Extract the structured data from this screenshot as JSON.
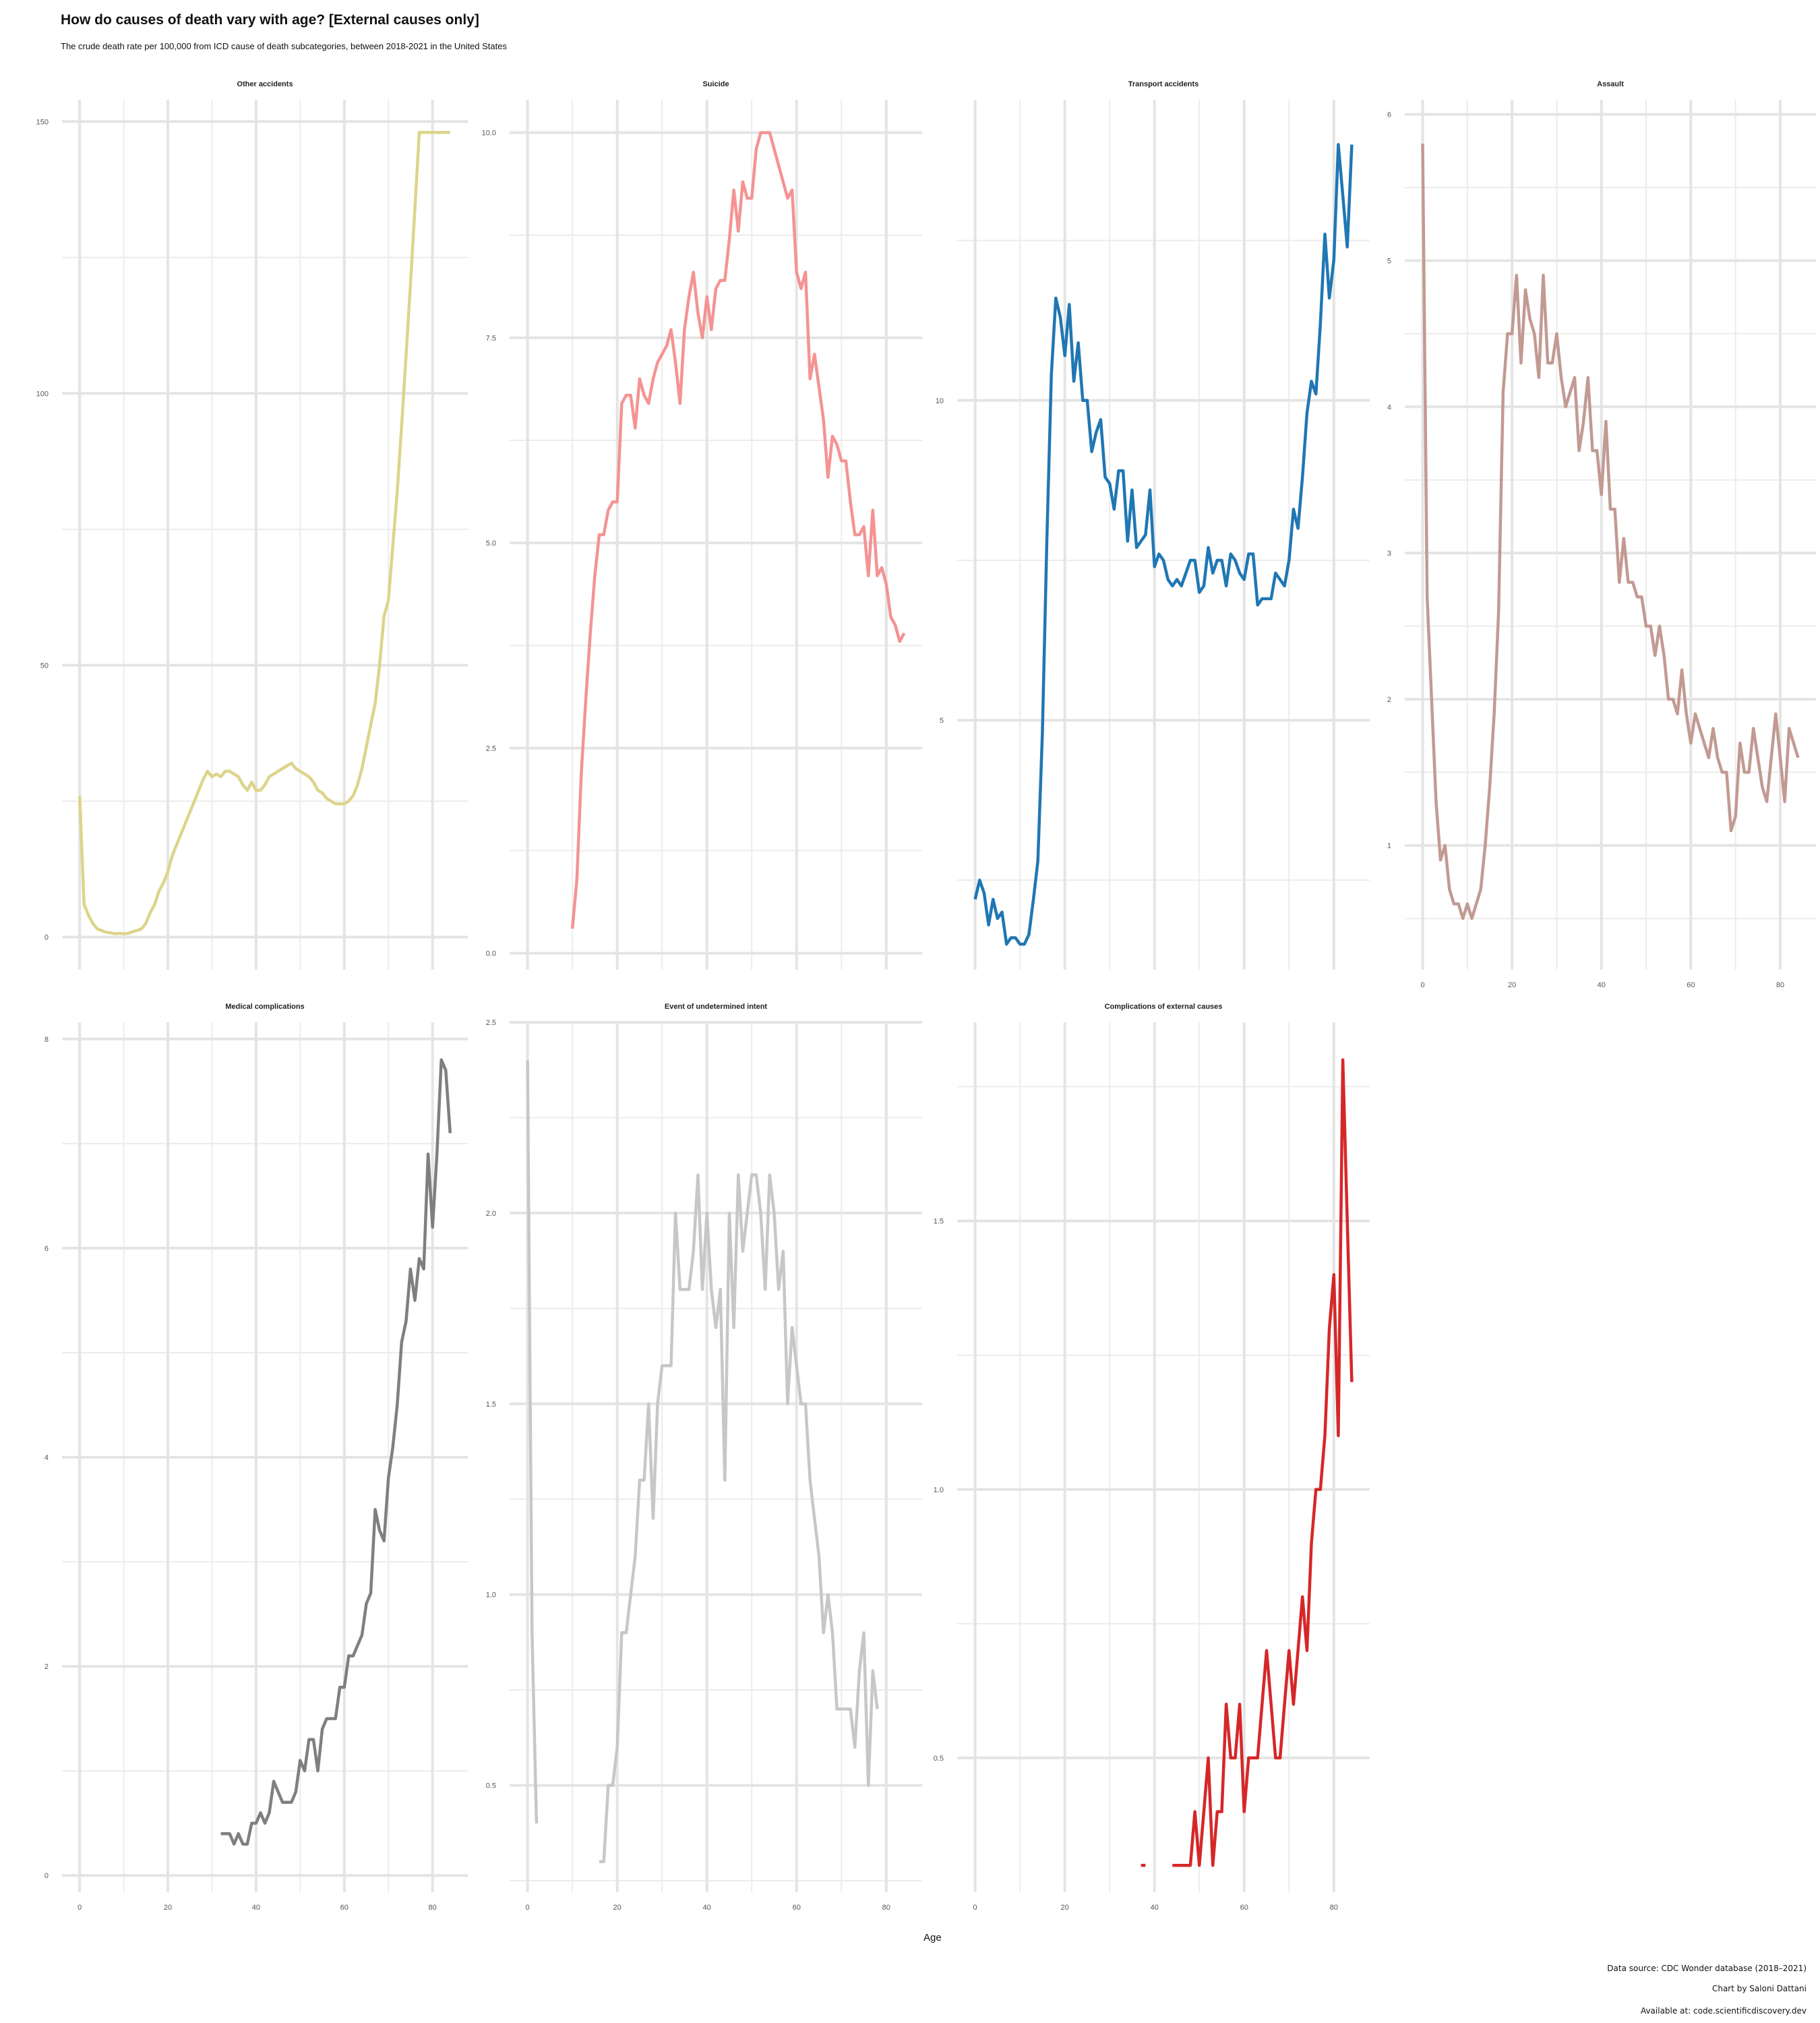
{
  "header": {
    "title": "How do causes of death vary with age? [External causes only]",
    "subtitle": "The crude death rate per 100,000 from ICD cause of death subcategories, between 2018-2021 in the United States"
  },
  "axis": {
    "xlabel": "Age"
  },
  "footer": {
    "source": "Data source: CDC Wonder database (2018–2021)",
    "author": "Chart by Saloni Dattani",
    "available": "Available at: code.scientificdiscovery.dev"
  },
  "chart_data": [
    {
      "type": "line",
      "title": "Other accidents",
      "color": "#ddd48b",
      "xlim": [
        -4,
        88
      ],
      "ylim": [
        -6,
        154
      ],
      "xticks": [],
      "yticks": [
        0,
        50,
        100,
        150
      ],
      "ytick_labels": [
        "0",
        "50",
        "100",
        "150"
      ],
      "x": [
        0,
        1,
        2,
        3,
        4,
        5,
        6,
        7,
        8,
        9,
        10,
        11,
        12,
        13,
        14,
        15,
        16,
        17,
        18,
        19,
        20,
        21,
        22,
        23,
        24,
        25,
        26,
        27,
        28,
        29,
        30,
        31,
        32,
        33,
        34,
        35,
        36,
        37,
        38,
        39,
        40,
        41,
        42,
        43,
        44,
        45,
        46,
        47,
        48,
        49,
        50,
        51,
        52,
        53,
        54,
        55,
        56,
        57,
        58,
        59,
        60,
        61,
        62,
        63,
        64,
        65,
        66,
        67,
        68,
        69,
        70,
        71,
        72,
        73,
        74,
        75,
        76,
        77,
        78,
        79,
        80,
        81,
        82,
        83,
        84
      ],
      "y": [
        26,
        6,
        4,
        2.5,
        1.5,
        1.2,
        0.9,
        0.8,
        0.6,
        0.7,
        0.6,
        0.7,
        1,
        1.2,
        1.5,
        2.5,
        4.5,
        6,
        8.5,
        10,
        12,
        15,
        17,
        19,
        21,
        23,
        25,
        27,
        29,
        30.5,
        29.5,
        30,
        29.5,
        30.5,
        30.5,
        30,
        29.5,
        28,
        27,
        28.5,
        27,
        27,
        28,
        29.5,
        30,
        30.5,
        31,
        31.5,
        32,
        31,
        30.5,
        30,
        29.5,
        28.5,
        27,
        26.5,
        25.5,
        25,
        24.5,
        24.5,
        24.5,
        25,
        26,
        28,
        31,
        35,
        39,
        43,
        50,
        59,
        62,
        72,
        82,
        94,
        107,
        120,
        134,
        148,
        148,
        148,
        148,
        148,
        148,
        148,
        148
      ]
    },
    {
      "type": "line",
      "title": "Suicide",
      "color": "#f59393",
      "xlim": [
        -4,
        88
      ],
      "ylim": [
        -0.2,
        10.4
      ],
      "xticks": [],
      "yticks": [
        0,
        2.5,
        5,
        7.5,
        10
      ],
      "ytick_labels": [
        "0.0",
        "2.5",
        "5.0",
        "7.5",
        "10.0"
      ],
      "x": [
        10,
        11,
        12,
        13,
        14,
        15,
        16,
        17,
        18,
        19,
        20,
        21,
        22,
        23,
        24,
        25,
        26,
        27,
        28,
        29,
        30,
        31,
        32,
        33,
        34,
        35,
        36,
        37,
        38,
        39,
        40,
        41,
        42,
        43,
        44,
        45,
        46,
        47,
        48,
        49,
        50,
        51,
        52,
        53,
        54,
        55,
        56,
        57,
        58,
        59,
        60,
        61,
        62,
        63,
        64,
        65,
        66,
        67,
        68,
        69,
        70,
        71,
        72,
        73,
        74,
        75,
        76,
        77,
        78,
        79,
        80,
        81,
        82,
        83,
        84
      ],
      "y": [
        0.3,
        0.9,
        2.2,
        3.1,
        3.9,
        4.6,
        5.1,
        5.1,
        5.4,
        5.5,
        5.5,
        6.7,
        6.8,
        6.8,
        6.4,
        7,
        6.8,
        6.7,
        7,
        7.2,
        7.3,
        7.4,
        7.6,
        7.2,
        6.7,
        7.6,
        8,
        8.3,
        7.8,
        7.5,
        8,
        7.6,
        8.1,
        8.2,
        8.2,
        8.7,
        9.3,
        8.8,
        9.4,
        9.2,
        9.2,
        9.8,
        10,
        10,
        10,
        9.8,
        9.6,
        9.4,
        9.2,
        9.3,
        8.3,
        8.1,
        8.3,
        7,
        7.3,
        6.9,
        6.5,
        5.8,
        6.3,
        6.2,
        6,
        6,
        5.5,
        5.1,
        5.1,
        5.2,
        4.6,
        5.4,
        4.6,
        4.7,
        4.5,
        4.1,
        4,
        3.8,
        3.9
      ]
    },
    {
      "type": "line",
      "title": "Transport accidents",
      "color": "#1f77b4",
      "xlim": [
        -4,
        88
      ],
      "ylim": [
        1.1,
        14.7
      ],
      "xticks": [],
      "yticks": [
        5,
        10
      ],
      "ytick_labels": [
        "5",
        "10"
      ],
      "x": [
        0,
        1,
        2,
        3,
        4,
        5,
        6,
        7,
        8,
        9,
        10,
        11,
        12,
        13,
        14,
        15,
        16,
        17,
        18,
        19,
        20,
        21,
        22,
        23,
        24,
        25,
        26,
        27,
        28,
        29,
        30,
        31,
        32,
        33,
        34,
        35,
        36,
        37,
        38,
        39,
        40,
        41,
        42,
        43,
        44,
        45,
        46,
        47,
        48,
        49,
        50,
        51,
        52,
        53,
        54,
        55,
        56,
        57,
        58,
        59,
        60,
        61,
        62,
        63,
        64,
        65,
        66,
        67,
        68,
        69,
        70,
        71,
        72,
        73,
        74,
        75,
        76,
        77,
        78,
        79,
        80,
        81,
        82,
        83,
        84
      ],
      "y": [
        2.2,
        2.5,
        2.3,
        1.8,
        2.2,
        1.9,
        2.0,
        1.5,
        1.6,
        1.6,
        1.5,
        1.5,
        1.65,
        2.2,
        2.8,
        4.8,
        7.8,
        10.4,
        11.6,
        11.3,
        10.7,
        11.5,
        10.3,
        10.9,
        10.0,
        10.0,
        9.2,
        9.5,
        9.7,
        8.8,
        8.7,
        8.3,
        8.9,
        8.9,
        7.8,
        8.6,
        7.7,
        7.8,
        7.9,
        8.6,
        7.4,
        7.6,
        7.5,
        7.2,
        7.1,
        7.2,
        7.1,
        7.3,
        7.5,
        7.5,
        7.0,
        7.1,
        7.7,
        7.3,
        7.5,
        7.5,
        7.1,
        7.6,
        7.5,
        7.3,
        7.2,
        7.6,
        7.6,
        6.8,
        6.9,
        6.9,
        6.9,
        7.3,
        7.2,
        7.1,
        7.5,
        8.3,
        8.0,
        8.8,
        9.8,
        10.3,
        10.1,
        11.2,
        12.6,
        11.6,
        12.2,
        14.0,
        13.2,
        12.4,
        14.0
      ]
    },
    {
      "type": "line",
      "title": "Assault",
      "color": "#c29a92",
      "xlim": [
        -4,
        88
      ],
      "ylim": [
        0.15,
        6.1
      ],
      "xticks": [
        0,
        20,
        40,
        60,
        80
      ],
      "yticks": [
        1,
        2,
        3,
        4,
        5,
        6
      ],
      "ytick_labels": [
        "1",
        "2",
        "3",
        "4",
        "5",
        "6"
      ],
      "x": [
        0,
        1,
        2,
        3,
        4,
        5,
        6,
        7,
        8,
        9,
        10,
        11,
        12,
        13,
        14,
        15,
        16,
        17,
        18,
        19,
        20,
        21,
        22,
        23,
        24,
        25,
        26,
        27,
        28,
        29,
        30,
        31,
        32,
        33,
        34,
        35,
        36,
        37,
        38,
        39,
        40,
        41,
        42,
        43,
        44,
        45,
        46,
        47,
        48,
        49,
        50,
        51,
        52,
        53,
        54,
        55,
        56,
        57,
        58,
        59,
        60,
        61,
        62,
        63,
        64,
        65,
        66,
        67,
        68,
        69,
        70,
        71,
        72,
        73,
        74,
        75,
        76,
        77,
        78,
        79,
        80,
        81,
        82,
        83,
        84
      ],
      "y": [
        5.8,
        2.7,
        2,
        1.3,
        0.9,
        1,
        0.7,
        0.6,
        0.6,
        0.5,
        0.6,
        0.5,
        0.6,
        0.7,
        1,
        1.4,
        1.9,
        2.6,
        4.1,
        4.5,
        4.5,
        4.9,
        4.3,
        4.8,
        4.6,
        4.5,
        4.2,
        4.9,
        4.3,
        4.3,
        4.5,
        4.2,
        4,
        4.1,
        4.2,
        3.7,
        3.9,
        4.2,
        3.7,
        3.7,
        3.4,
        3.9,
        3.3,
        3.3,
        2.8,
        3.1,
        2.8,
        2.8,
        2.7,
        2.7,
        2.5,
        2.5,
        2.3,
        2.5,
        2.3,
        2,
        2,
        1.9,
        2.2,
        1.9,
        1.7,
        1.9,
        1.8,
        1.7,
        1.6,
        1.8,
        1.6,
        1.5,
        1.5,
        1.1,
        1.2,
        1.7,
        1.5,
        1.5,
        1.8,
        1.6,
        1.4,
        1.3,
        1.6,
        1.9,
        1.6,
        1.3,
        1.8,
        1.7,
        1.6
      ]
    },
    {
      "type": "line",
      "title": "Medical complications",
      "color": "#7f7f7f",
      "xlim": [
        -4,
        88
      ],
      "ylim": [
        -0.16,
        8.16
      ],
      "xticks": [
        0,
        20,
        40,
        60,
        80
      ],
      "yticks": [
        0,
        2,
        4,
        6,
        8
      ],
      "ytick_labels": [
        "0",
        "2",
        "4",
        "6",
        "8"
      ],
      "x": [
        32,
        33,
        34,
        35,
        36,
        37,
        38,
        39,
        40,
        41,
        42,
        43,
        44,
        45,
        46,
        47,
        48,
        49,
        50,
        51,
        52,
        53,
        54,
        55,
        56,
        57,
        58,
        59,
        60,
        61,
        62,
        63,
        64,
        65,
        66,
        67,
        68,
        69,
        70,
        71,
        72,
        73,
        74,
        75,
        76,
        77,
        78,
        79,
        80,
        81,
        82,
        83,
        84
      ],
      "y": [
        0.4,
        0.4,
        0.4,
        0.3,
        0.4,
        0.3,
        0.3,
        0.5,
        0.5,
        0.6,
        0.5,
        0.6,
        0.9,
        0.8,
        0.7,
        0.7,
        0.7,
        0.8,
        1.1,
        1.0,
        1.3,
        1.3,
        1.0,
        1.4,
        1.5,
        1.5,
        1.5,
        1.8,
        1.8,
        2.1,
        2.1,
        2.2,
        2.3,
        2.6,
        2.7,
        3.5,
        3.3,
        3.2,
        3.8,
        4.1,
        4.5,
        5.1,
        5.3,
        5.8,
        5.5,
        5.9,
        5.8,
        6.9,
        6.2,
        6.9,
        7.8,
        7.7,
        7.1
      ]
    },
    {
      "type": "line",
      "title": "Event of undetermined intent",
      "color": "#c7c7c7",
      "xlim": [
        -4,
        88
      ],
      "ylim": [
        0.22,
        2.5
      ],
      "xticks": [
        0,
        20,
        40,
        60,
        80
      ],
      "yticks": [
        0.5,
        1,
        1.5,
        2,
        2.5
      ],
      "ytick_labels": [
        "0.5",
        "1.0",
        "1.5",
        "2.0",
        "2.5"
      ],
      "segments": [
        {
          "x": [
            0,
            1,
            2
          ],
          "y": [
            2.4,
            0.9,
            0.4
          ]
        },
        {
          "x": [
            16,
            17,
            18,
            19,
            20,
            21,
            22,
            23,
            24,
            25,
            26,
            27,
            28,
            29,
            30,
            31,
            32,
            33,
            34,
            35,
            36,
            37,
            38,
            39,
            40,
            41,
            42,
            43,
            44,
            45,
            46,
            47,
            48,
            49,
            50,
            51,
            52,
            53,
            54,
            55,
            56,
            57,
            58,
            59,
            60,
            61,
            62,
            63,
            64,
            65,
            66,
            67,
            68,
            69,
            70,
            71,
            72,
            73,
            74,
            75,
            76,
            77,
            78
          ],
          "y": [
            0.3,
            0.3,
            0.5,
            0.5,
            0.6,
            0.9,
            0.9,
            1.0,
            1.1,
            1.3,
            1.3,
            1.5,
            1.2,
            1.5,
            1.6,
            1.6,
            1.6,
            2.0,
            1.8,
            1.8,
            1.8,
            1.9,
            2.1,
            1.8,
            2.0,
            1.8,
            1.7,
            1.8,
            1.3,
            2.0,
            1.7,
            2.1,
            1.9,
            2.0,
            2.1,
            2.1,
            2.0,
            1.8,
            2.1,
            2.0,
            1.8,
            1.9,
            1.5,
            1.7,
            1.6,
            1.5,
            1.5,
            1.3,
            1.2,
            1.1,
            0.9,
            1.0,
            0.9,
            0.7,
            0.7,
            0.7,
            0.7,
            0.6,
            0.8,
            0.9,
            0.5,
            0.8,
            0.7
          ]
        }
      ]
    },
    {
      "type": "line",
      "title": "Complications of external causes",
      "color": "#d62728",
      "xlim": [
        -4,
        88
      ],
      "ylim": [
        0.25,
        1.87
      ],
      "xticks": [
        0,
        20,
        40,
        60,
        80
      ],
      "yticks": [
        0.5,
        1,
        1.5
      ],
      "ytick_labels": [
        "0.5",
        "1.0",
        "1.5"
      ],
      "segments": [
        {
          "x": [
            37,
            38
          ],
          "y": [
            0.3,
            0.3
          ]
        },
        {
          "x": [
            44,
            45,
            46,
            47,
            48,
            49,
            50,
            51,
            52,
            53,
            54,
            55,
            56,
            57,
            58,
            59,
            60,
            61,
            62,
            63,
            64,
            65,
            66,
            67,
            68,
            69,
            70,
            71,
            72,
            73,
            74,
            75,
            76,
            77,
            78,
            79,
            80,
            81,
            82,
            83,
            84
          ],
          "y": [
            0.3,
            0.3,
            0.3,
            0.3,
            0.3,
            0.4,
            0.3,
            0.4,
            0.5,
            0.3,
            0.4,
            0.4,
            0.6,
            0.5,
            0.5,
            0.6,
            0.4,
            0.5,
            0.5,
            0.5,
            0.6,
            0.7,
            0.6,
            0.5,
            0.5,
            0.6,
            0.7,
            0.6,
            0.7,
            0.8,
            0.7,
            0.9,
            1.0,
            1.0,
            1.1,
            1.3,
            1.4,
            1.1,
            1.8,
            1.5,
            1.2
          ]
        }
      ]
    }
  ]
}
